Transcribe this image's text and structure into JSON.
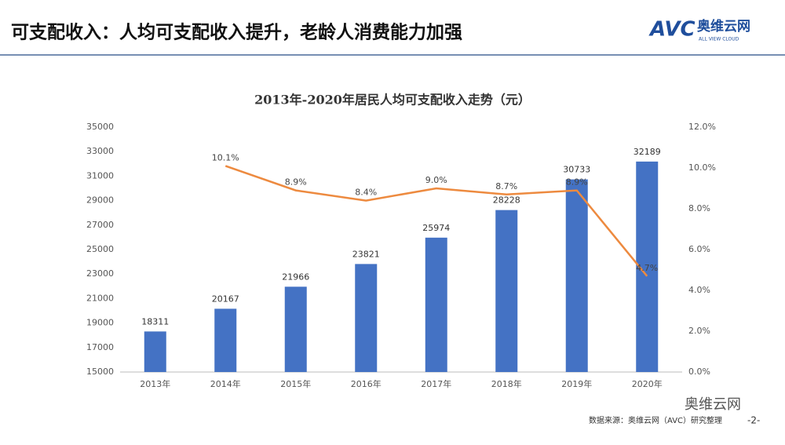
{
  "header": {
    "title": "可支配收入：人均可支配收入提升，老龄人消费能力加强",
    "logo_text": "AVC",
    "logo_name": "奥维云网",
    "logo_sub": "ALL VIEW CLOUD"
  },
  "footer": {
    "source": "数据来源：奥维云网（AVC）研究整理",
    "page": "-2-",
    "watermark": "奥维云网"
  },
  "chart_data": {
    "type": "bar",
    "title": "2013年-2020年居民人均可支配收入走势（元）",
    "categories": [
      "2013年",
      "2014年",
      "2015年",
      "2016年",
      "2017年",
      "2018年",
      "2019年",
      "2020年"
    ],
    "series": [
      {
        "type": "bar",
        "color": "#4472c4",
        "values": [
          18311,
          20167,
          21966,
          23821,
          25974,
          28228,
          30733,
          32189
        ]
      },
      {
        "type": "line",
        "color": "#ed8a3f",
        "axis": "y2",
        "values": [
          null,
          10.1,
          8.9,
          8.4,
          9.0,
          8.7,
          8.9,
          4.7
        ],
        "value_labels": [
          null,
          "10.1%",
          "8.9%",
          "8.4%",
          "9.0%",
          "8.7%",
          "8.9%",
          "4.7%"
        ]
      }
    ],
    "ylim": [
      15000,
      35000
    ],
    "yticks": [
      15000,
      17000,
      19000,
      21000,
      23000,
      25000,
      27000,
      29000,
      31000,
      33000,
      35000
    ],
    "y2lim": [
      0,
      12
    ],
    "y2ticks": [
      {
        "value": 0,
        "label": "0.0%"
      },
      {
        "value": 2,
        "label": "2.0%"
      },
      {
        "value": 4,
        "label": "4.0%"
      },
      {
        "value": 6,
        "label": "6.0%"
      },
      {
        "value": 8,
        "label": "8.0%"
      },
      {
        "value": 10,
        "label": "10.0%"
      },
      {
        "value": 12,
        "label": "12.0%"
      }
    ],
    "grid": false
  }
}
